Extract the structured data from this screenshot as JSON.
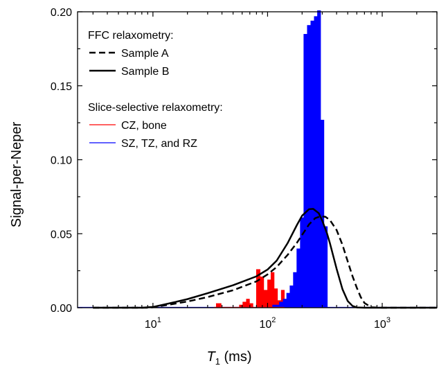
{
  "chart_data": {
    "type": "histogram+line",
    "xlabel": {
      "italic": "T",
      "sub": "1",
      "rest": " (ms)"
    },
    "ylabel": "Signal-per-Neper",
    "x_scale": "log",
    "xlim": [
      2.2,
      3000
    ],
    "ylim": [
      0,
      0.2
    ],
    "x_ticks": [
      {
        "value": 10,
        "base": "10",
        "exp": "1"
      },
      {
        "value": 100,
        "base": "10",
        "exp": "2"
      },
      {
        "value": 1000,
        "base": "10",
        "exp": "3"
      }
    ],
    "y_ticks": [
      {
        "value": 0,
        "label": "0.00"
      },
      {
        "value": 0.05,
        "label": "0.05"
      },
      {
        "value": 0.1,
        "label": "0.10"
      },
      {
        "value": 0.15,
        "label": "0.15"
      },
      {
        "value": 0.2,
        "label": "0.20"
      }
    ],
    "legend": {
      "placement": "top-left",
      "group1_title": "FFC relaxometry:",
      "group2_title": "Slice-selective relaxometry:",
      "entries": [
        {
          "label": "Sample A",
          "style": "dashed",
          "color": "#000000"
        },
        {
          "label": "Sample B",
          "style": "solid",
          "color": "#000000"
        },
        {
          "label": "CZ, bone",
          "style": "thin",
          "color": "#ff0000"
        },
        {
          "label": "SZ, TZ, and RZ",
          "style": "thin",
          "color": "#0000ff"
        }
      ]
    },
    "histograms": [
      {
        "name": "CZ, bone",
        "color": "#ff0000",
        "bins": [
          [
            35.5,
            39.3,
            0.003
          ],
          [
            56.5,
            60.5,
            0.002
          ],
          [
            60.5,
            65.0,
            0.004
          ],
          [
            65.0,
            69.5,
            0.006
          ],
          [
            69.5,
            74.5,
            0.003
          ],
          [
            79.5,
            86.0,
            0.026
          ],
          [
            86.0,
            92.5,
            0.021
          ],
          [
            92.5,
            99.5,
            0.012
          ],
          [
            99.5,
            106.5,
            0.019
          ],
          [
            106.5,
            114.0,
            0.024
          ],
          [
            114.0,
            122.0,
            0.013
          ],
          [
            122.0,
            131.0,
            0.005
          ],
          [
            131.0,
            140.0,
            0.012
          ]
        ]
      },
      {
        "name": "SZ, TZ, and RZ",
        "color": "#0000ff",
        "bins": [
          [
            110.0,
            118.0,
            0.002
          ],
          [
            118.0,
            126.0,
            0.002
          ],
          [
            126.0,
            136.0,
            0.004
          ],
          [
            136.0,
            146.0,
            0.006
          ],
          [
            146.0,
            156.0,
            0.01
          ],
          [
            156.0,
            167.0,
            0.015
          ],
          [
            167.0,
            179.0,
            0.024
          ],
          [
            179.0,
            192.0,
            0.04
          ],
          [
            192.0,
            206.0,
            0.061
          ],
          [
            206.0,
            221.0,
            0.185
          ],
          [
            221.0,
            237.0,
            0.191
          ],
          [
            237.0,
            254.0,
            0.194
          ],
          [
            254.0,
            271.0,
            0.197
          ],
          [
            271.0,
            290.0,
            0.215
          ],
          [
            290.0,
            310.0,
            0.127
          ],
          [
            310.0,
            332.0,
            0.055
          ]
        ]
      }
    ],
    "series": [
      {
        "name": "Sample A",
        "style": "dashed",
        "color": "#000000",
        "x": [
          3,
          6,
          9,
          10,
          12,
          15,
          20,
          30,
          50,
          80,
          100,
          120,
          150,
          180,
          200,
          230,
          260,
          290,
          320,
          350,
          400,
          450,
          500,
          550,
          600,
          650,
          700,
          800,
          1000,
          3000
        ],
        "y": [
          0,
          0,
          0,
          0.0003,
          0.0013,
          0.0025,
          0.0042,
          0.0072,
          0.0118,
          0.0178,
          0.0225,
          0.0275,
          0.0358,
          0.0438,
          0.0492,
          0.0563,
          0.0605,
          0.0618,
          0.0614,
          0.0592,
          0.0525,
          0.0425,
          0.0313,
          0.0214,
          0.0135,
          0.0071,
          0.0032,
          0.0003,
          0,
          0
        ]
      },
      {
        "name": "Sample B",
        "style": "solid",
        "color": "#000000",
        "x": [
          3,
          6,
          8,
          10,
          12,
          15,
          20,
          30,
          50,
          80,
          100,
          120,
          150,
          180,
          200,
          230,
          250,
          280,
          300,
          330,
          350,
          400,
          450,
          500,
          550,
          600,
          700,
          1000,
          3000
        ],
        "y": [
          0,
          0,
          0,
          0.0005,
          0.0018,
          0.0035,
          0.0058,
          0.0098,
          0.0152,
          0.0212,
          0.0258,
          0.0318,
          0.0438,
          0.0558,
          0.0622,
          0.0666,
          0.0668,
          0.0638,
          0.0588,
          0.0502,
          0.0435,
          0.0263,
          0.0125,
          0.0045,
          0.0012,
          0.0002,
          0,
          0,
          0
        ]
      }
    ]
  }
}
